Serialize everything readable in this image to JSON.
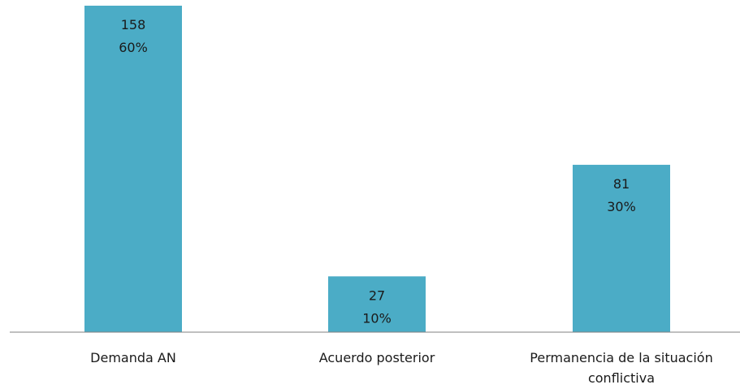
{
  "chart_data": {
    "type": "bar",
    "categories": [
      [
        "Demanda AN"
      ],
      [
        "Acuerdo posterior"
      ],
      [
        "Permanencia de la situación",
        "conflictiva"
      ]
    ],
    "values": [
      158,
      27,
      81
    ],
    "value_labels": [
      "158",
      "27",
      "81"
    ],
    "percent_labels": [
      "60%",
      "10%",
      "30%"
    ],
    "title": "",
    "xlabel": "",
    "ylabel": "",
    "grid": false,
    "legend": "none",
    "colors": {
      "bar": "#4bacc6",
      "axis": "#808080",
      "text": "#1a1a1a"
    }
  }
}
